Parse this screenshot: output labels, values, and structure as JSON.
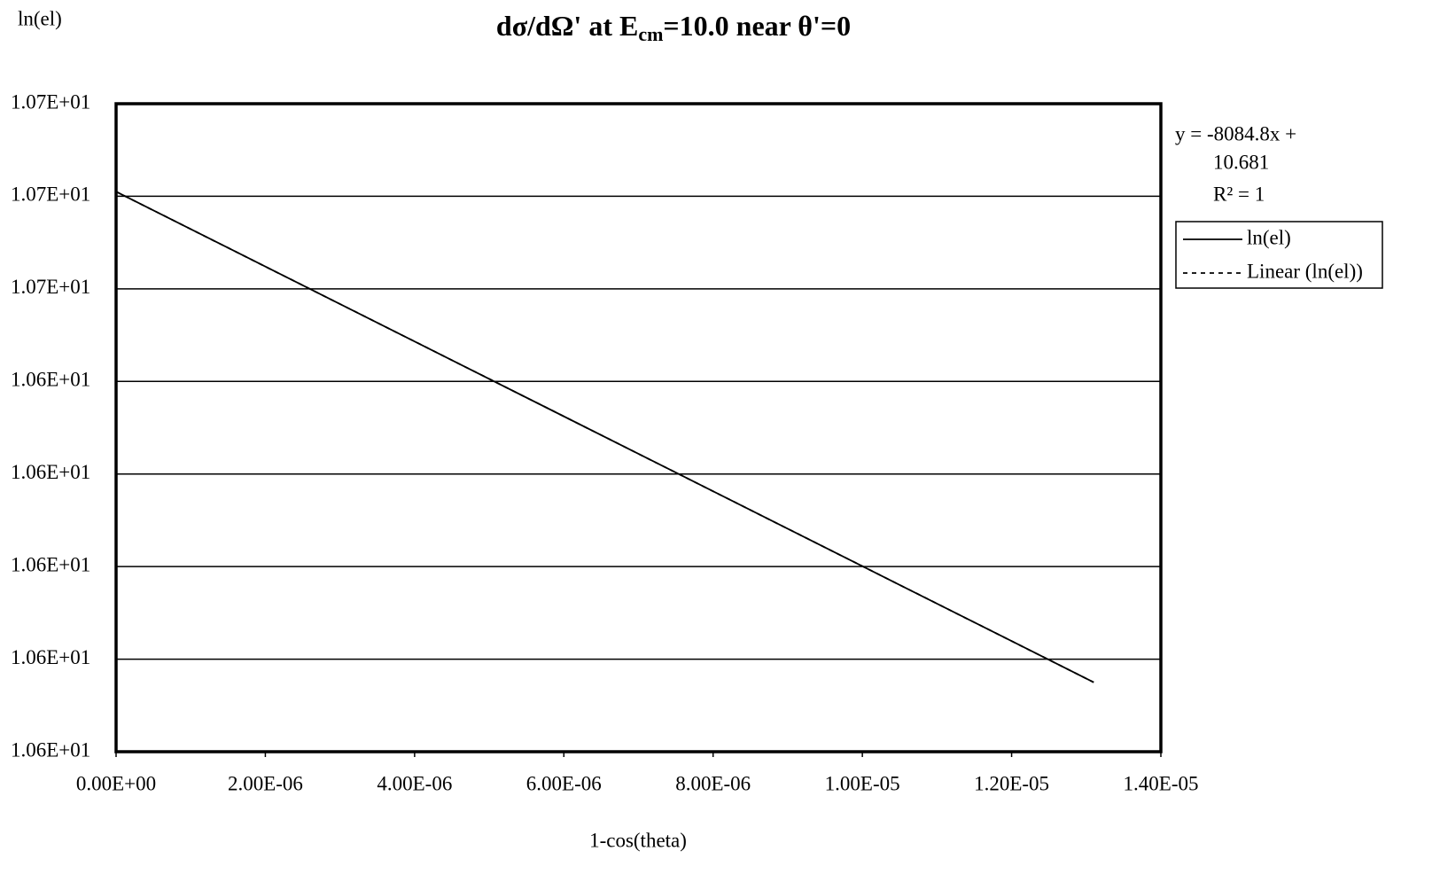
{
  "chart_data": {
    "type": "line",
    "title": "dσ/dΩ' at E",
    "title_subscript": "cm",
    "title_end": "=10.0 near θ'=0",
    "y_label": "ln(el)",
    "x_label": "1-cos(theta)",
    "x": [
      0,
      1.31e-05
    ],
    "series": [
      {
        "name": "ln(el)",
        "color": "#000000",
        "dash": false,
        "values": [
          10.681,
          10.575
        ]
      },
      {
        "name": "Linear (ln(el))",
        "color": "#000000",
        "dash": true,
        "values": [
          10.681,
          10.575
        ]
      }
    ],
    "trendline_equation": [
      "y = -8084.8x +",
      "10.681"
    ],
    "trendline_r2": "R² = 1",
    "xlim": [
      0,
      1.4e-05
    ],
    "xticks": [
      {
        "value": 0,
        "label": "0.00E+00"
      },
      {
        "value": 2e-06,
        "label": "2.00E-06"
      },
      {
        "value": 4e-06,
        "label": "4.00E-06"
      },
      {
        "value": 6e-06,
        "label": "6.00E-06"
      },
      {
        "value": 8e-06,
        "label": "8.00E-06"
      },
      {
        "value": 1e-05,
        "label": "1.00E-05"
      },
      {
        "value": 1.2e-05,
        "label": "1.20E-05"
      },
      {
        "value": 1.4e-05,
        "label": "1.40E-05"
      }
    ],
    "ylim": [
      10.56,
      10.7
    ],
    "yticks": [
      {
        "value": 10.56,
        "label": "1.06E+01"
      },
      {
        "value": 10.58,
        "label": "1.06E+01"
      },
      {
        "value": 10.6,
        "label": "1.06E+01"
      },
      {
        "value": 10.62,
        "label": "1.06E+01"
      },
      {
        "value": 10.64,
        "label": "1.06E+01"
      },
      {
        "value": 10.66,
        "label": "1.07E+01"
      },
      {
        "value": 10.68,
        "label": "1.07E+01"
      },
      {
        "value": 10.7,
        "label": "1.07E+01"
      }
    ],
    "grid": true
  }
}
